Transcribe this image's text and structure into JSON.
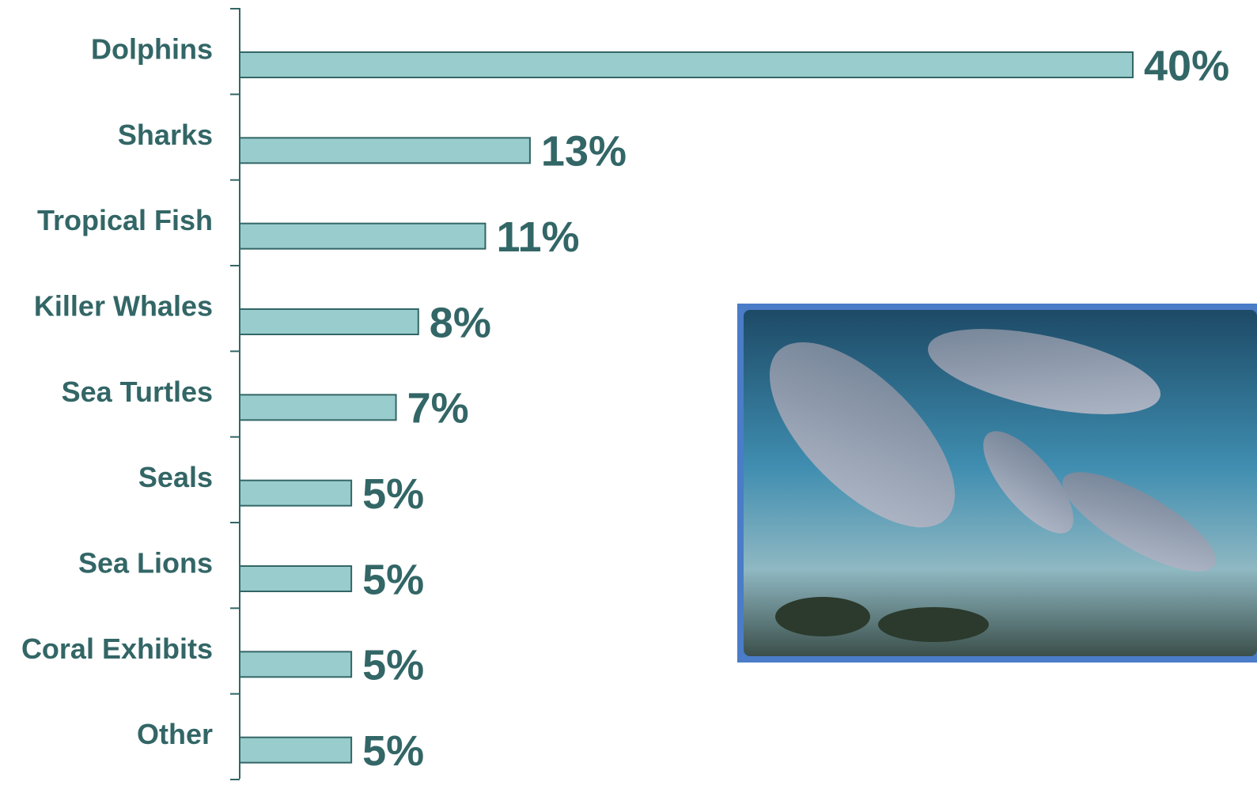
{
  "chart_data": {
    "type": "bar",
    "orientation": "horizontal",
    "categories": [
      "Dolphins",
      "Sharks",
      "Tropical Fish",
      "Killer Whales",
      "Sea Turtles",
      "Seals",
      "Sea Lions",
      "Coral Exhibits",
      "Other"
    ],
    "values": [
      40,
      13,
      11,
      8,
      7,
      5,
      5,
      5,
      5
    ],
    "value_labels": [
      "40%",
      "13%",
      "11%",
      "8%",
      "7%",
      "5%",
      "5%",
      "5%",
      "5%"
    ],
    "color": "#99cccc",
    "xlim": [
      0,
      40
    ]
  }
}
